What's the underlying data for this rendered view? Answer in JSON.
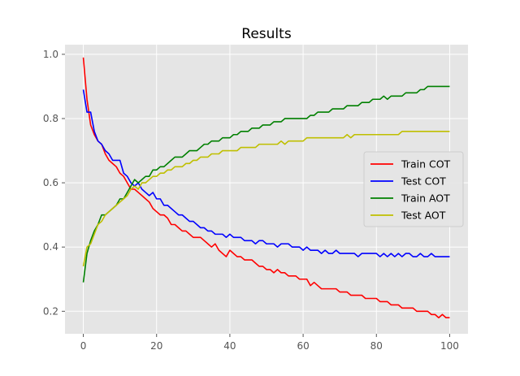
{
  "chart_data": {
    "type": "line",
    "title": "Results",
    "xlabel": "",
    "ylabel": "",
    "xlim": [
      -5,
      105
    ],
    "ylim": [
      0.13,
      1.03
    ],
    "xticks": [
      0,
      20,
      40,
      60,
      80,
      100
    ],
    "xtick_labels": [
      "0",
      "20",
      "40",
      "60",
      "80",
      "100"
    ],
    "yticks": [
      0.2,
      0.4,
      0.6,
      0.8,
      1.0
    ],
    "ytick_labels": [
      "0.2",
      "0.4",
      "0.6",
      "0.8",
      "1.0"
    ],
    "grid": true,
    "legend_position": "center-right",
    "background_color": "#e5e5e5",
    "grid_color": "#ffffff",
    "x": [
      0,
      1,
      2,
      3,
      4,
      5,
      6,
      7,
      8,
      9,
      10,
      11,
      12,
      13,
      14,
      15,
      16,
      17,
      18,
      19,
      20,
      21,
      22,
      23,
      24,
      25,
      26,
      27,
      28,
      29,
      30,
      31,
      32,
      33,
      34,
      35,
      36,
      37,
      38,
      39,
      40,
      41,
      42,
      43,
      44,
      45,
      46,
      47,
      48,
      49,
      50,
      51,
      52,
      53,
      54,
      55,
      56,
      57,
      58,
      59,
      60,
      61,
      62,
      63,
      64,
      65,
      66,
      67,
      68,
      69,
      70,
      71,
      72,
      73,
      74,
      75,
      76,
      77,
      78,
      79,
      80,
      81,
      82,
      83,
      84,
      85,
      86,
      87,
      88,
      89,
      90,
      91,
      92,
      93,
      94,
      95,
      96,
      97,
      98,
      99,
      100
    ],
    "series": [
      {
        "name": "Train COT",
        "color": "#ff0000",
        "values": [
          0.99,
          0.86,
          0.78,
          0.75,
          0.73,
          0.72,
          0.69,
          0.67,
          0.66,
          0.65,
          0.63,
          0.62,
          0.6,
          0.58,
          0.58,
          0.57,
          0.56,
          0.55,
          0.54,
          0.52,
          0.51,
          0.5,
          0.5,
          0.49,
          0.47,
          0.47,
          0.46,
          0.45,
          0.45,
          0.44,
          0.43,
          0.43,
          0.43,
          0.42,
          0.41,
          0.4,
          0.41,
          0.39,
          0.38,
          0.37,
          0.39,
          0.38,
          0.37,
          0.37,
          0.36,
          0.36,
          0.36,
          0.35,
          0.34,
          0.34,
          0.33,
          0.33,
          0.32,
          0.33,
          0.32,
          0.32,
          0.31,
          0.31,
          0.31,
          0.3,
          0.3,
          0.3,
          0.28,
          0.29,
          0.28,
          0.27,
          0.27,
          0.27,
          0.27,
          0.27,
          0.26,
          0.26,
          0.26,
          0.25,
          0.25,
          0.25,
          0.25,
          0.24,
          0.24,
          0.24,
          0.24,
          0.23,
          0.23,
          0.23,
          0.22,
          0.22,
          0.22,
          0.21,
          0.21,
          0.21,
          0.21,
          0.2,
          0.2,
          0.2,
          0.2,
          0.19,
          0.19,
          0.18,
          0.19,
          0.18,
          0.18
        ]
      },
      {
        "name": "Test COT",
        "color": "#0000ff",
        "values": [
          0.89,
          0.82,
          0.82,
          0.76,
          0.73,
          0.72,
          0.7,
          0.69,
          0.67,
          0.67,
          0.67,
          0.63,
          0.62,
          0.6,
          0.59,
          0.6,
          0.58,
          0.57,
          0.56,
          0.57,
          0.55,
          0.55,
          0.53,
          0.53,
          0.52,
          0.51,
          0.5,
          0.5,
          0.49,
          0.48,
          0.48,
          0.47,
          0.46,
          0.46,
          0.45,
          0.45,
          0.44,
          0.44,
          0.44,
          0.43,
          0.44,
          0.43,
          0.43,
          0.43,
          0.42,
          0.42,
          0.42,
          0.41,
          0.42,
          0.42,
          0.41,
          0.41,
          0.41,
          0.4,
          0.41,
          0.41,
          0.41,
          0.4,
          0.4,
          0.4,
          0.39,
          0.4,
          0.39,
          0.39,
          0.39,
          0.38,
          0.39,
          0.38,
          0.38,
          0.39,
          0.38,
          0.38,
          0.38,
          0.38,
          0.38,
          0.37,
          0.38,
          0.38,
          0.38,
          0.38,
          0.38,
          0.37,
          0.38,
          0.37,
          0.38,
          0.37,
          0.38,
          0.37,
          0.38,
          0.38,
          0.37,
          0.37,
          0.38,
          0.37,
          0.37,
          0.38,
          0.37,
          0.37,
          0.37,
          0.37,
          0.37
        ]
      },
      {
        "name": "Train AOT",
        "color": "#008000",
        "values": [
          0.29,
          0.38,
          0.42,
          0.45,
          0.47,
          0.5,
          0.5,
          0.51,
          0.52,
          0.53,
          0.55,
          0.55,
          0.57,
          0.59,
          0.61,
          0.6,
          0.61,
          0.62,
          0.62,
          0.64,
          0.64,
          0.65,
          0.65,
          0.66,
          0.67,
          0.68,
          0.68,
          0.68,
          0.69,
          0.7,
          0.7,
          0.7,
          0.71,
          0.72,
          0.72,
          0.73,
          0.73,
          0.73,
          0.74,
          0.74,
          0.74,
          0.75,
          0.75,
          0.76,
          0.76,
          0.76,
          0.77,
          0.77,
          0.77,
          0.78,
          0.78,
          0.78,
          0.79,
          0.79,
          0.79,
          0.8,
          0.8,
          0.8,
          0.8,
          0.8,
          0.8,
          0.8,
          0.81,
          0.81,
          0.82,
          0.82,
          0.82,
          0.82,
          0.83,
          0.83,
          0.83,
          0.83,
          0.84,
          0.84,
          0.84,
          0.84,
          0.85,
          0.85,
          0.85,
          0.86,
          0.86,
          0.86,
          0.87,
          0.86,
          0.87,
          0.87,
          0.87,
          0.87,
          0.88,
          0.88,
          0.88,
          0.88,
          0.89,
          0.89,
          0.9,
          0.9,
          0.9,
          0.9,
          0.9,
          0.9,
          0.9
        ]
      },
      {
        "name": "Test AOT",
        "color": "#bfbf00",
        "values": [
          0.34,
          0.4,
          0.41,
          0.44,
          0.47,
          0.48,
          0.5,
          0.51,
          0.52,
          0.53,
          0.54,
          0.55,
          0.56,
          0.58,
          0.59,
          0.58,
          0.6,
          0.6,
          0.61,
          0.62,
          0.62,
          0.63,
          0.63,
          0.64,
          0.64,
          0.65,
          0.65,
          0.65,
          0.66,
          0.66,
          0.67,
          0.67,
          0.68,
          0.68,
          0.68,
          0.69,
          0.69,
          0.69,
          0.7,
          0.7,
          0.7,
          0.7,
          0.7,
          0.71,
          0.71,
          0.71,
          0.71,
          0.71,
          0.72,
          0.72,
          0.72,
          0.72,
          0.72,
          0.72,
          0.73,
          0.72,
          0.73,
          0.73,
          0.73,
          0.73,
          0.73,
          0.74,
          0.74,
          0.74,
          0.74,
          0.74,
          0.74,
          0.74,
          0.74,
          0.74,
          0.74,
          0.74,
          0.75,
          0.74,
          0.75,
          0.75,
          0.75,
          0.75,
          0.75,
          0.75,
          0.75,
          0.75,
          0.75,
          0.75,
          0.75,
          0.75,
          0.75,
          0.76,
          0.76,
          0.76,
          0.76,
          0.76,
          0.76,
          0.76,
          0.76,
          0.76,
          0.76,
          0.76,
          0.76,
          0.76,
          0.76
        ]
      }
    ]
  }
}
